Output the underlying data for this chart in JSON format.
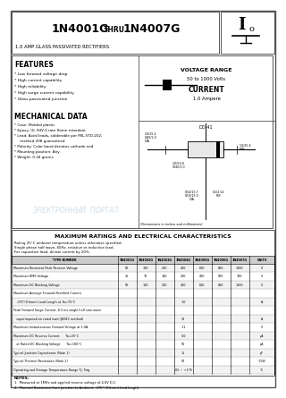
{
  "title_main_left": "1N4001G",
  "title_thru": "THRU",
  "title_main_right": "1N4007G",
  "title_sub": "1.0 AMP GLASS PASSIVATED RECTIFIERS",
  "voltage_range_title": "VOLTAGE RANGE",
  "voltage_range_val": "50 to 1000 Volts",
  "current_title": "CURRENT",
  "current_val": "1.0 Ampere",
  "features_title": "FEATURES",
  "features": [
    "* Low forward voltage drop",
    "* High current capability",
    "* High reliability",
    "* High surge current capability",
    "* Glass passivated junction"
  ],
  "mech_title": "MECHANICAL DATA",
  "mech": [
    "* Case: Molded plastic",
    "* Epoxy: UL 94V-0 rate flame retardant",
    "* Lead: Axial leads, solderable per MIL-STD-202,",
    "     method 208 guaranteed",
    "* Polarity: Color band denotes cathode end",
    "* Mounting position: Any",
    "* Weight: 0.34 grams"
  ],
  "ratings_title": "MAXIMUM RATINGS AND ELECTRICAL CHARACTERISTICS",
  "ratings_note1": "Rating 25°C ambient temperature unless otherwise specified.",
  "ratings_note2": "Single phase half wave, 60Hz, resistive or inductive load.",
  "ratings_note3": "For capacitive load, derate current by 20%.",
  "table_headers": [
    "TYPE NUMBER",
    "1N4001G",
    "1N4002G",
    "1N4003G",
    "1N4004G",
    "1N4005G",
    "1N4006G",
    "1N4007G",
    "UNITS"
  ],
  "table_rows": [
    [
      "Maximum Recurrent Peak Reverse Voltage",
      "50",
      "100",
      "200",
      "400",
      "600",
      "800",
      "1000",
      "V"
    ],
    [
      "Maximum RMS Voltage",
      "35",
      "70",
      "140",
      "280",
      "420",
      "560",
      "700",
      "V"
    ],
    [
      "Maximum DC Blocking Voltage",
      "50",
      "100",
      "200",
      "400",
      "600",
      "800",
      "1000",
      "V"
    ],
    [
      "Maximum Average Forward Rectified Current",
      "",
      "",
      "",
      "",
      "",
      "",
      "",
      ""
    ],
    [
      "   .375\"(9.5mm) Lead Length at Ta=75°C",
      "",
      "",
      "",
      "1.0",
      "",
      "",
      "",
      "A"
    ],
    [
      "Peak Forward Surge Current, 8.3 ms single half sine-wave",
      "",
      "",
      "",
      "",
      "",
      "",
      "",
      ""
    ],
    [
      "   superimposed on rated load (JEDEC method)",
      "",
      "",
      "",
      "30",
      "",
      "",
      "",
      "A"
    ],
    [
      "Maximum Instantaneous Forward Voltage at 1.0A",
      "",
      "",
      "",
      "1.1",
      "",
      "",
      "",
      "V"
    ],
    [
      "Maximum DC Reverse Current      Ta=25°C",
      "",
      "",
      "",
      "5.0",
      "",
      "",
      "",
      "μA"
    ],
    [
      "   at Rated DC Blocking Voltage      Ta=100°C",
      "",
      "",
      "",
      "50",
      "",
      "",
      "",
      "μA"
    ],
    [
      "Typical Junction Capacitance (Note 1)",
      "",
      "",
      "",
      "15",
      "",
      "",
      "",
      "pF"
    ],
    [
      "Typical Thermal Resistance (Note 2)",
      "",
      "",
      "",
      "50",
      "",
      "",
      "",
      "°C/W"
    ],
    [
      "Operating and Storage Temperature Range TJ, Tstg",
      "",
      "",
      "",
      "-65 ~ +175",
      "",
      "",
      "",
      "°C"
    ]
  ],
  "notes_title": "NOTES:",
  "notes": [
    "1.  Measured at 1MHz and applied reverse voltage of 4.0V D.C.",
    "2.  Thermal Resistance from Junction to Ambient: .375\" (9.5mm) lead length."
  ],
  "bg_color": "#ffffff",
  "watermark_color": "#b0c8d8"
}
